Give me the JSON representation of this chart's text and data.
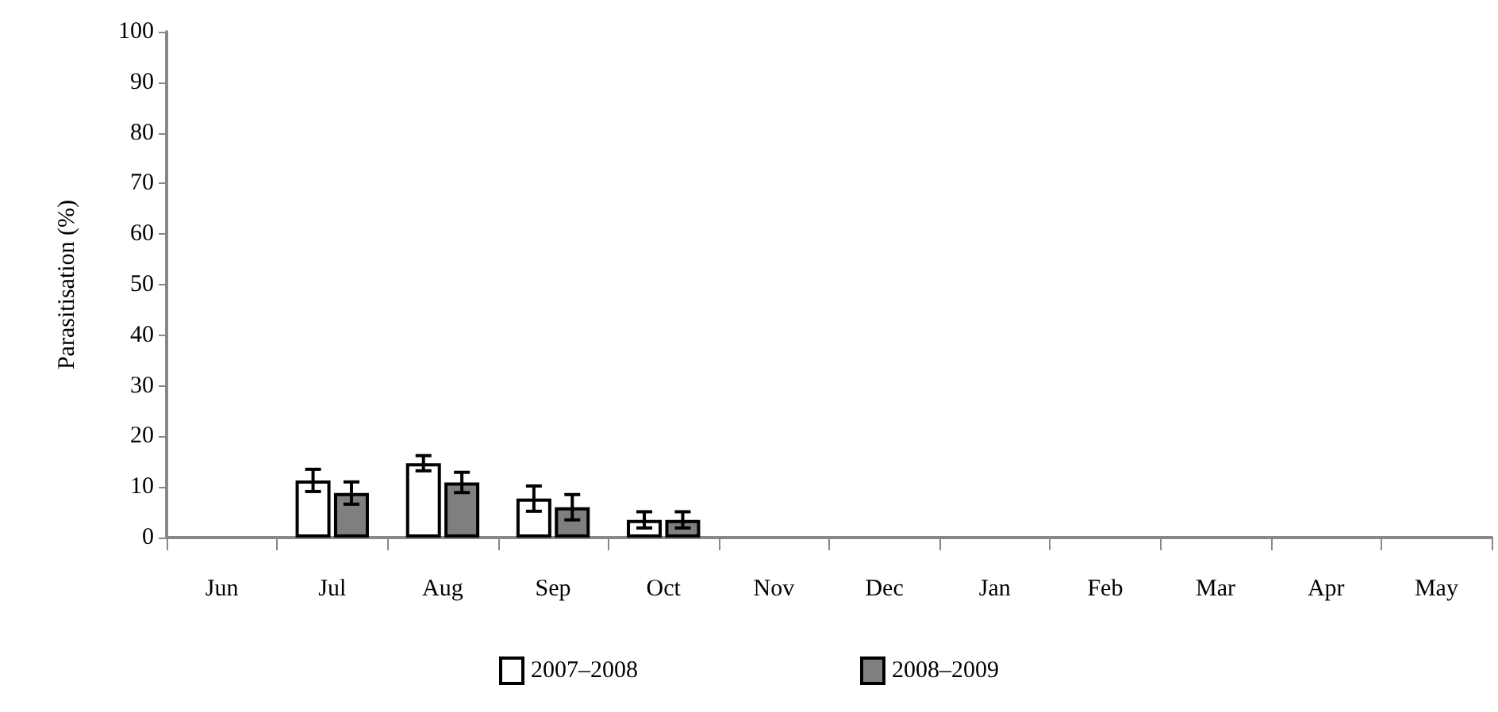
{
  "chart_data": {
    "type": "bar",
    "ylabel": "Parasitisation (%)",
    "categories": [
      "Jun",
      "Jul",
      "Aug",
      "Sep",
      "Oct",
      "Nov",
      "Dec",
      "Jan",
      "Feb",
      "Mar",
      "Apr",
      "May"
    ],
    "series": [
      {
        "name": "2007–2008",
        "color": "#ffffff",
        "values": [
          0,
          11.3,
          14.7,
          7.7,
          3.5,
          0,
          0,
          0,
          0,
          0,
          0,
          0
        ],
        "errors": [
          null,
          2.2,
          1.5,
          2.5,
          1.6,
          null,
          null,
          null,
          null,
          null,
          null,
          null
        ]
      },
      {
        "name": "2008–2009",
        "color": "#7f7f7f",
        "values": [
          0,
          8.8,
          10.9,
          6,
          3.5,
          0,
          0,
          0,
          0,
          0,
          0,
          0
        ],
        "errors": [
          null,
          2.2,
          2,
          2.5,
          1.6,
          null,
          null,
          null,
          null,
          null,
          null,
          null
        ]
      }
    ],
    "ylim": [
      0,
      100
    ],
    "yticks": [
      0,
      10,
      20,
      30,
      40,
      50,
      60,
      70,
      80,
      90,
      100
    ],
    "grid": false,
    "legend": "bottom"
  }
}
